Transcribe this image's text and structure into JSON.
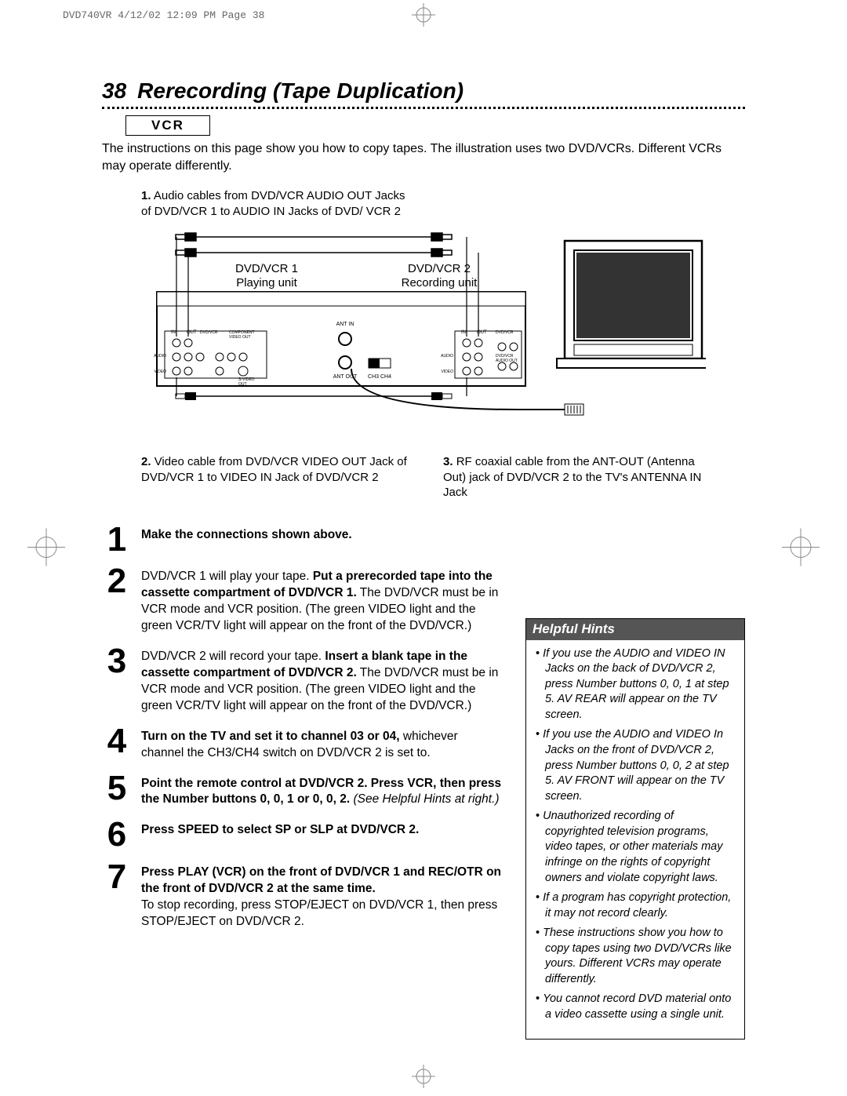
{
  "print_header": "DVD740VR  4/12/02  12:09 PM  Page 38",
  "page_number": "38",
  "title": "Rerecording (Tape Duplication)",
  "vcr_tag": "VCR",
  "intro": "The instructions on this page show you how to copy tapes. The illustration uses two DVD/VCRs. Different VCRs may operate differently.",
  "caption1_num": "1.",
  "caption1_line1": "Audio cables from DVD/VCR AUDIO OUT Jacks",
  "caption1_line2": "of DVD/VCR 1 to AUDIO IN Jacks of DVD/ VCR 2",
  "diagram": {
    "unit1_line1": "DVD/VCR 1",
    "unit1_line2": "Playing unit",
    "unit2_line1": "DVD/VCR 2",
    "unit2_line2": "Recording unit",
    "jack_labels": [
      "IN",
      "OUT",
      "DVD/VCR",
      "COMPONENT VIDEO OUT",
      "S-VIDEO",
      "AUDIO",
      "VIDEO",
      "ANT IN",
      "ANT OUT",
      "CH3 CH4",
      "DVD/VCR AUDIO OUT"
    ]
  },
  "caption2_num": "2.",
  "caption2_text": "Video cable from DVD/VCR VIDEO OUT Jack of DVD/VCR 1 to VIDEO IN Jack of DVD/VCR 2",
  "caption3_num": "3.",
  "caption3_text": "RF coaxial cable from the ANT-OUT (Antenna Out) jack of DVD/VCR 2 to the TV's ANTENNA IN Jack",
  "steps": [
    {
      "n": "1",
      "body": "<span class='bold'>Make the connections shown above.</span>"
    },
    {
      "n": "2",
      "body": "DVD/VCR 1 will play your tape. <span class='bold'>Put a prerecorded tape into the cassette compartment of DVD/VCR 1.</span> The DVD/VCR must be in VCR mode and VCR position. (The green VIDEO light and the green VCR/TV light will appear on the front of the DVD/VCR.)"
    },
    {
      "n": "3",
      "body": "DVD/VCR 2 will record your tape. <span class='bold'>Insert a blank tape in the cassette compartment of DVD/VCR 2.</span> The DVD/VCR must be in VCR mode and VCR position. (The green VIDEO light and the green VCR/TV light will appear on the front of the DVD/VCR.)"
    },
    {
      "n": "4",
      "body": "<span class='bold'>Turn on the TV and set it to channel 03 or 04,</span> whichever channel the CH3/CH4 switch on DVD/VCR 2 is set to."
    },
    {
      "n": "5",
      "body": "<span class='bold'>Point the remote control at DVD/VCR 2. Press VCR, then press the Number buttons 0, 0, 1 or 0, 0, 2.</span> <span class='ital'>(See Helpful Hints at right.)</span>"
    },
    {
      "n": "6",
      "body": "<span class='bold'>Press SPEED to select SP or SLP at DVD/VCR 2.</span>"
    },
    {
      "n": "7",
      "body": "<span class='bold'>Press PLAY (VCR) on the front of DVD/VCR 1 and REC/OTR on the front of DVD/VCR 2 at the same time.</span><br>To stop recording, press STOP/EJECT on DVD/VCR 1, then press STOP/EJECT on DVD/VCR 2."
    }
  ],
  "hints_header": "Helpful Hints",
  "hints": [
    "If you use the AUDIO and VIDEO IN Jacks on the back of DVD/VCR 2, press Number buttons 0, 0, 1 at step 5. AV REAR will appear on the TV screen.",
    "If you use the AUDIO and VIDEO In Jacks on the front of DVD/VCR 2, press Number buttons 0, 0, 2 at step 5. AV FRONT will appear on the TV screen.",
    "Unauthorized recording of copyrighted television programs, video tapes, or other materials may infringe on the rights of copyright owners and violate copyright laws.",
    "If a program has copyright protection, it may not record clearly.",
    "These instructions show you how to copy tapes using two DVD/VCRs like yours. Different VCRs may operate differently.",
    "You cannot record DVD material onto a video cassette using a single unit."
  ],
  "colors": {
    "text": "#000000",
    "bg": "#ffffff",
    "hints_header_bg": "#555555",
    "hints_header_fg": "#ffffff",
    "crop_mark": "#888888"
  }
}
